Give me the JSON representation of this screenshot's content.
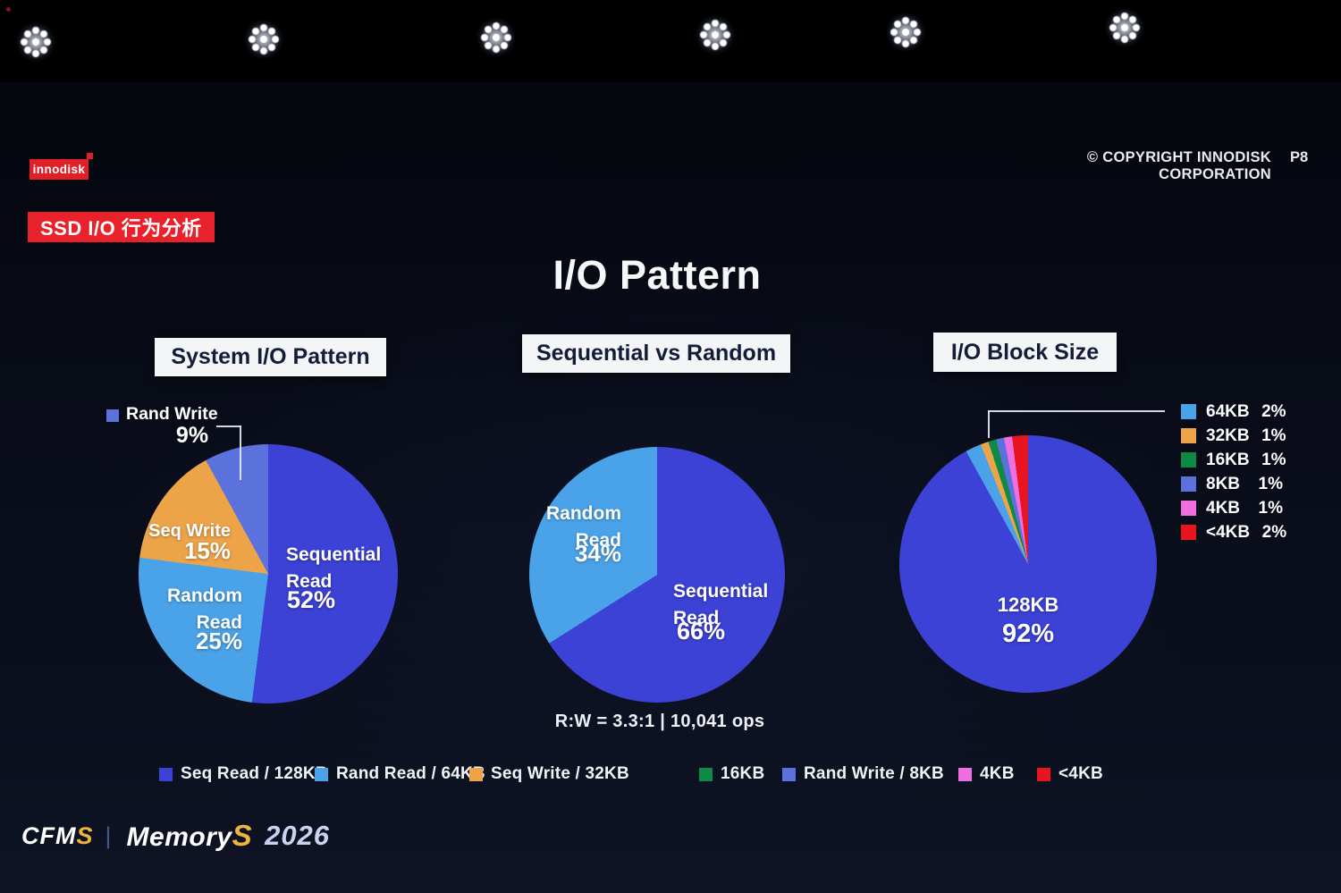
{
  "header": {
    "logo": "innodisk",
    "copyright": "© COPYRIGHT INNODISK CORPORATION",
    "page": "P8",
    "badge": "SSD I/O 行为分析"
  },
  "title": "I/O Pattern",
  "chart_data": [
    {
      "type": "pie",
      "title": "System I/O Pattern",
      "labels": [
        "Sequential Read",
        "Random Read",
        "Seq Write",
        "Rand Write"
      ],
      "values": [
        52,
        25,
        15,
        9
      ],
      "unit": "%",
      "colors": [
        "#3c42d5",
        "#4aa3e9",
        "#eda449",
        "#5b72dd"
      ],
      "start_angle_deg": 0,
      "direction": "clockwise",
      "callout": "Rand Write 9% labeled outside with elbow leader line"
    },
    {
      "type": "pie",
      "title": "Sequential vs Random",
      "labels": [
        "Sequential Read",
        "Random Read"
      ],
      "values": [
        66,
        34
      ],
      "unit": "%",
      "colors": [
        "#3c42d5",
        "#4aa3e9"
      ],
      "start_angle_deg": 0,
      "direction": "clockwise",
      "annotation": "R:W = 3.3:1 | 10,041 ops"
    },
    {
      "type": "pie",
      "title": "I/O Block Size",
      "labels": [
        "128KB",
        "64KB",
        "32KB",
        "16KB",
        "8KB",
        "4KB",
        "<4KB"
      ],
      "values": [
        92,
        2,
        1,
        1,
        1,
        1,
        2
      ],
      "unit": "%",
      "colors": [
        "#3c42d5",
        "#4aa3e9",
        "#eda449",
        "#0d8a45",
        "#5b72dd",
        "#ef6fe2",
        "#e8141f"
      ],
      "start_angle_deg": 0,
      "direction": "clockwise",
      "legend_position": "right"
    }
  ],
  "charts": {
    "system": {
      "header": "System I/O Pattern",
      "seq_read": "Sequential Read",
      "seq_read_value": "52%",
      "rand_read": "Random Read",
      "rand_read_value": "25%",
      "seq_write": "Seq Write",
      "seq_write_value": "15%",
      "rand_write": "Rand Write",
      "rand_write_value": "9%"
    },
    "seq_vs_random": {
      "header": "Sequential vs Random",
      "seq_read": "Sequential Read",
      "seq_read_value": "66%",
      "rand_read": "Random Read",
      "rand_read_value": "34%",
      "caption": "R:W = 3.3:1 | 10,041 ops"
    },
    "block_size": {
      "header": "I/O Block Size",
      "center_label": "128KB",
      "center_value": "92%",
      "legend": [
        {
          "label": "64KB",
          "value": "2%",
          "color": "#4aa3e9"
        },
        {
          "label": "32KB",
          "value": "1%",
          "color": "#eda449"
        },
        {
          "label": "16KB",
          "value": "1%",
          "color": "#0d8a45"
        },
        {
          "label": "8KB",
          "value": "1%",
          "color": "#5b72dd"
        },
        {
          "label": "4KB",
          "value": "1%",
          "color": "#ef6fe2"
        },
        {
          "label": "<4KB",
          "value": "2%",
          "color": "#e8141f"
        }
      ]
    }
  },
  "bottom_legend": [
    {
      "label": "Seq Read / 128KB",
      "color": "#3c42d5"
    },
    {
      "label": "Rand Read / 64KB",
      "color": "#4aa3e9"
    },
    {
      "label": "Seq Write / 32KB",
      "color": "#eda449"
    },
    {
      "label": "16KB",
      "color": "#0d8a45"
    },
    {
      "label": "Rand Write / 8KB",
      "color": "#5b72dd"
    },
    {
      "label": "4KB",
      "color": "#ef6fe2"
    },
    {
      "label": "<4KB",
      "color": "#e8141f"
    }
  ],
  "footer": {
    "cfm": "CFM",
    "cfm_s": "S",
    "separator": "|",
    "memory": "Memory",
    "memory_s": "S",
    "year": "2026"
  },
  "colors": {
    "badge_red": "#e8212b",
    "rand_write": "#5b72dd"
  }
}
